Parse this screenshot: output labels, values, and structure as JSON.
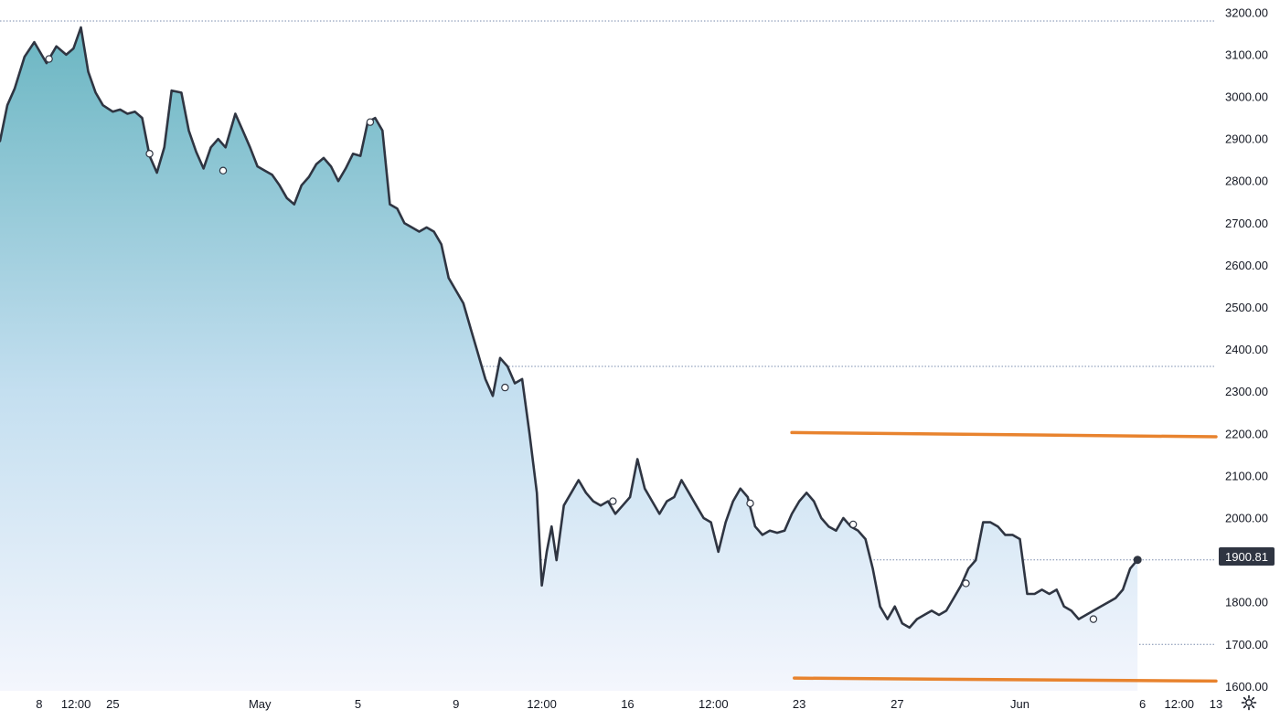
{
  "chart_data": {
    "type": "area",
    "title": "",
    "xlabel": "",
    "ylabel": "",
    "ylim": [
      1590,
      3230
    ],
    "y_ticks": [
      "3200.00",
      "3100.00",
      "3000.00",
      "2900.00",
      "2800.00",
      "2700.00",
      "2600.00",
      "2500.00",
      "2400.00",
      "2300.00",
      "2200.00",
      "2100.00",
      "2000.00",
      "1900.00",
      "1800.00",
      "1700.00",
      "1600.00"
    ],
    "x_range_days": [
      -1.6,
      48.0
    ],
    "x_ticks": [
      {
        "label": "8",
        "day": 0
      },
      {
        "label": "12:00",
        "day": 1.5
      },
      {
        "label": "25",
        "day": 3
      },
      {
        "label": "May",
        "day": 9
      },
      {
        "label": "5",
        "day": 13
      },
      {
        "label": "9",
        "day": 17
      },
      {
        "label": "12:00",
        "day": 20.5
      },
      {
        "label": "16",
        "day": 24
      },
      {
        "label": "12:00",
        "day": 27.5
      },
      {
        "label": "23",
        "day": 31
      },
      {
        "label": "27",
        "day": 35
      },
      {
        "label": "Jun",
        "day": 40
      },
      {
        "label": "6",
        "day": 45
      },
      {
        "label": "12:00",
        "day": 46.5
      },
      {
        "label": "13",
        "day": 48
      }
    ],
    "series": [
      {
        "type": "line",
        "points": [
          [
            -1.6,
            2895
          ],
          [
            -1.3,
            2980
          ],
          [
            -1.0,
            3020
          ],
          [
            -0.6,
            3095
          ],
          [
            -0.2,
            3130
          ],
          [
            0.3,
            3080
          ],
          [
            0.7,
            3120
          ],
          [
            1.1,
            3100
          ],
          [
            1.4,
            3115
          ],
          [
            1.7,
            3165
          ],
          [
            2.0,
            3060
          ],
          [
            2.3,
            3010
          ],
          [
            2.6,
            2980
          ],
          [
            3.0,
            2965
          ],
          [
            3.3,
            2970
          ],
          [
            3.6,
            2960
          ],
          [
            3.9,
            2965
          ],
          [
            4.2,
            2950
          ],
          [
            4.5,
            2860
          ],
          [
            4.8,
            2820
          ],
          [
            5.1,
            2880
          ],
          [
            5.4,
            3015
          ],
          [
            5.8,
            3010
          ],
          [
            6.1,
            2920
          ],
          [
            6.4,
            2870
          ],
          [
            6.7,
            2830
          ],
          [
            7.0,
            2880
          ],
          [
            7.3,
            2900
          ],
          [
            7.6,
            2880
          ],
          [
            8.0,
            2960
          ],
          [
            8.3,
            2920
          ],
          [
            8.6,
            2880
          ],
          [
            8.9,
            2835
          ],
          [
            9.2,
            2825
          ],
          [
            9.5,
            2815
          ],
          [
            9.8,
            2790
          ],
          [
            10.1,
            2760
          ],
          [
            10.4,
            2745
          ],
          [
            10.7,
            2790
          ],
          [
            11.0,
            2810
          ],
          [
            11.3,
            2840
          ],
          [
            11.6,
            2855
          ],
          [
            11.9,
            2835
          ],
          [
            12.2,
            2800
          ],
          [
            12.5,
            2830
          ],
          [
            12.8,
            2865
          ],
          [
            13.1,
            2860
          ],
          [
            13.4,
            2940
          ],
          [
            13.7,
            2950
          ],
          [
            14.0,
            2920
          ],
          [
            14.3,
            2745
          ],
          [
            14.6,
            2735
          ],
          [
            14.9,
            2700
          ],
          [
            15.2,
            2690
          ],
          [
            15.5,
            2680
          ],
          [
            15.8,
            2690
          ],
          [
            16.1,
            2680
          ],
          [
            16.4,
            2650
          ],
          [
            16.7,
            2570
          ],
          [
            17.0,
            2540
          ],
          [
            17.3,
            2510
          ],
          [
            17.6,
            2450
          ],
          [
            17.9,
            2390
          ],
          [
            18.2,
            2330
          ],
          [
            18.5,
            2290
          ],
          [
            18.8,
            2380
          ],
          [
            19.1,
            2360
          ],
          [
            19.4,
            2320
          ],
          [
            19.7,
            2330
          ],
          [
            20.0,
            2200
          ],
          [
            20.3,
            2060
          ],
          [
            20.5,
            1840
          ],
          [
            20.7,
            1920
          ],
          [
            20.9,
            1980
          ],
          [
            21.1,
            1900
          ],
          [
            21.4,
            2030
          ],
          [
            21.7,
            2060
          ],
          [
            22.0,
            2090
          ],
          [
            22.3,
            2060
          ],
          [
            22.6,
            2040
          ],
          [
            22.9,
            2030
          ],
          [
            23.2,
            2040
          ],
          [
            23.5,
            2010
          ],
          [
            23.8,
            2030
          ],
          [
            24.1,
            2050
          ],
          [
            24.4,
            2140
          ],
          [
            24.7,
            2070
          ],
          [
            25.0,
            2040
          ],
          [
            25.3,
            2010
          ],
          [
            25.6,
            2040
          ],
          [
            25.9,
            2050
          ],
          [
            26.2,
            2090
          ],
          [
            26.5,
            2060
          ],
          [
            26.8,
            2030
          ],
          [
            27.1,
            2000
          ],
          [
            27.4,
            1990
          ],
          [
            27.7,
            1920
          ],
          [
            28.0,
            1990
          ],
          [
            28.3,
            2040
          ],
          [
            28.6,
            2070
          ],
          [
            28.9,
            2050
          ],
          [
            29.2,
            1980
          ],
          [
            29.5,
            1960
          ],
          [
            29.8,
            1970
          ],
          [
            30.1,
            1965
          ],
          [
            30.4,
            1970
          ],
          [
            30.7,
            2010
          ],
          [
            31.0,
            2040
          ],
          [
            31.3,
            2060
          ],
          [
            31.6,
            2040
          ],
          [
            31.9,
            2000
          ],
          [
            32.2,
            1980
          ],
          [
            32.5,
            1970
          ],
          [
            32.8,
            2000
          ],
          [
            33.1,
            1980
          ],
          [
            33.4,
            1970
          ],
          [
            33.7,
            1950
          ],
          [
            34.0,
            1880
          ],
          [
            34.3,
            1790
          ],
          [
            34.6,
            1760
          ],
          [
            34.9,
            1790
          ],
          [
            35.2,
            1750
          ],
          [
            35.5,
            1740
          ],
          [
            35.8,
            1760
          ],
          [
            36.1,
            1770
          ],
          [
            36.4,
            1780
          ],
          [
            36.7,
            1770
          ],
          [
            37.0,
            1780
          ],
          [
            37.3,
            1810
          ],
          [
            37.6,
            1840
          ],
          [
            37.9,
            1880
          ],
          [
            38.2,
            1900
          ],
          [
            38.5,
            1990
          ],
          [
            38.8,
            1990
          ],
          [
            39.1,
            1980
          ],
          [
            39.4,
            1960
          ],
          [
            39.7,
            1960
          ],
          [
            40.0,
            1950
          ],
          [
            40.3,
            1820
          ],
          [
            40.6,
            1820
          ],
          [
            40.9,
            1830
          ],
          [
            41.2,
            1820
          ],
          [
            41.5,
            1830
          ],
          [
            41.8,
            1790
          ],
          [
            42.1,
            1780
          ],
          [
            42.4,
            1760
          ],
          [
            42.7,
            1770
          ],
          [
            43.0,
            1780
          ],
          [
            43.3,
            1790
          ],
          [
            43.6,
            1800
          ],
          [
            43.9,
            1810
          ],
          [
            44.2,
            1830
          ],
          [
            44.5,
            1880
          ],
          [
            44.8,
            1900.81
          ]
        ],
        "color": "#2f3542"
      },
      {
        "type": "segment",
        "name": "",
        "points": [
          [
            30.7,
            2203
          ],
          [
            48.0,
            2193
          ]
        ],
        "color": "#e8832e"
      },
      {
        "type": "segment",
        "name": "",
        "points": [
          [
            30.8,
            1620
          ],
          [
            48.0,
            1613
          ]
        ],
        "color": "#e8832e"
      }
    ],
    "horizontal_levels": [
      3180,
      2360,
      1900.81,
      1700
    ],
    "markers": [
      {
        "day": 0.4,
        "value": 3090
      },
      {
        "day": 4.5,
        "value": 2865
      },
      {
        "day": 7.5,
        "value": 2825
      },
      {
        "day": 13.5,
        "value": 2940
      },
      {
        "day": 19.0,
        "value": 2310
      },
      {
        "day": 23.4,
        "value": 2040
      },
      {
        "day": 29.0,
        "value": 2035
      },
      {
        "day": 33.2,
        "value": 1985
      },
      {
        "day": 37.8,
        "value": 1845
      },
      {
        "day": 43.0,
        "value": 1760
      }
    ],
    "last_price": "1900.81",
    "colors": {
      "line": "#2f3542",
      "area_top": "#6bb6c2",
      "area_mid": "#c4dff0",
      "area_bottom": "#f4f6fd",
      "level_line": "#7a8cae",
      "trend_line": "#e8832e",
      "price_tag_bg": "#2f3542",
      "axis_text": "#131722"
    },
    "grid": false,
    "legend": "none"
  },
  "controls": {
    "settings_icon": "gear-icon"
  }
}
